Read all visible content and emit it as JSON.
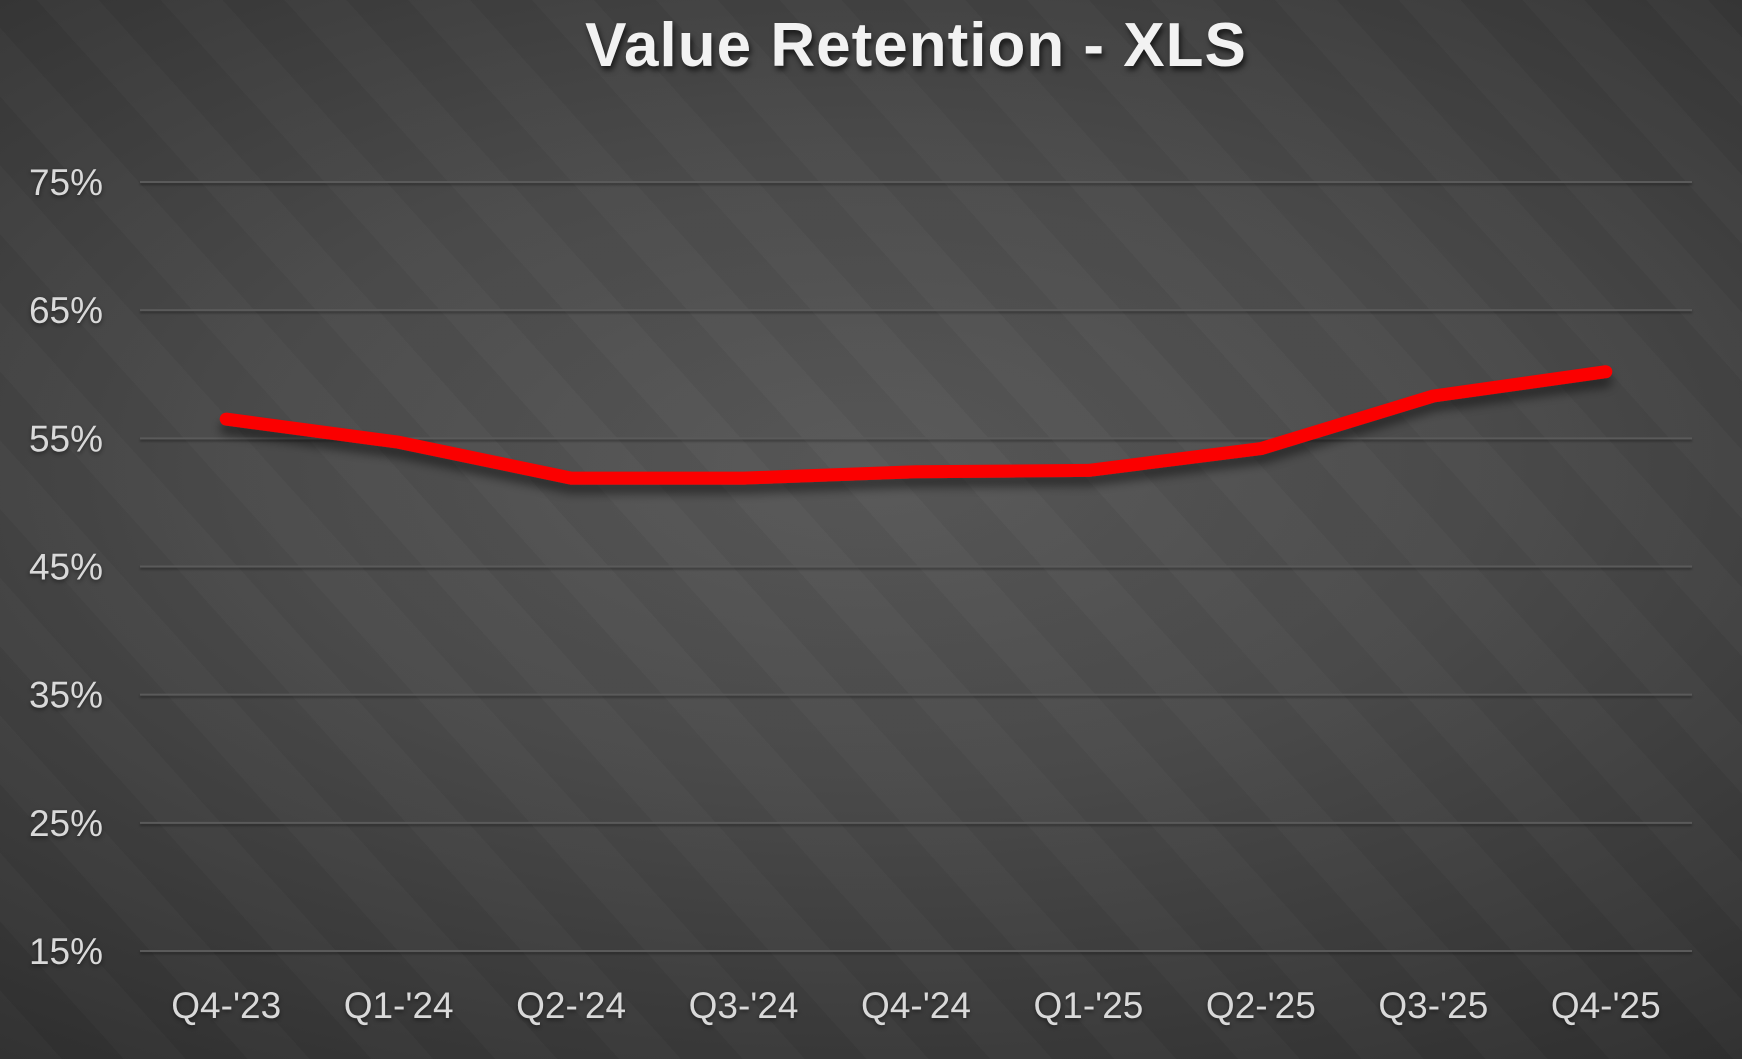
{
  "title": "Value Retention - XLS",
  "chart_data": {
    "type": "line",
    "title": "Value Retention - XLS",
    "categories": [
      "Q4-'23",
      "Q1-'24",
      "Q2-'24",
      "Q3-'24",
      "Q4-'24",
      "Q1-'25",
      "Q2-'25",
      "Q3-'25",
      "Q4-'25"
    ],
    "values": [
      56.5,
      54.7,
      51.9,
      51.9,
      52.4,
      52.5,
      54.2,
      58.3,
      60.2
    ],
    "xlabel": "",
    "ylabel": "",
    "ylim": [
      15,
      75
    ],
    "yticks": [
      15,
      25,
      35,
      45,
      55,
      65,
      75
    ],
    "ytick_labels": [
      "15%",
      "25%",
      "35%",
      "45%",
      "55%",
      "65%",
      "75%"
    ],
    "grid": true,
    "legend": false,
    "line_color": "#FB0505"
  },
  "colors": {
    "line": "#FB0505",
    "gridline": "#5A5A5A",
    "axis_label": "#D9D9D9",
    "title_text": "#F2F2F2",
    "background_center": "#585858",
    "background_edge": "#1D1D1D"
  }
}
